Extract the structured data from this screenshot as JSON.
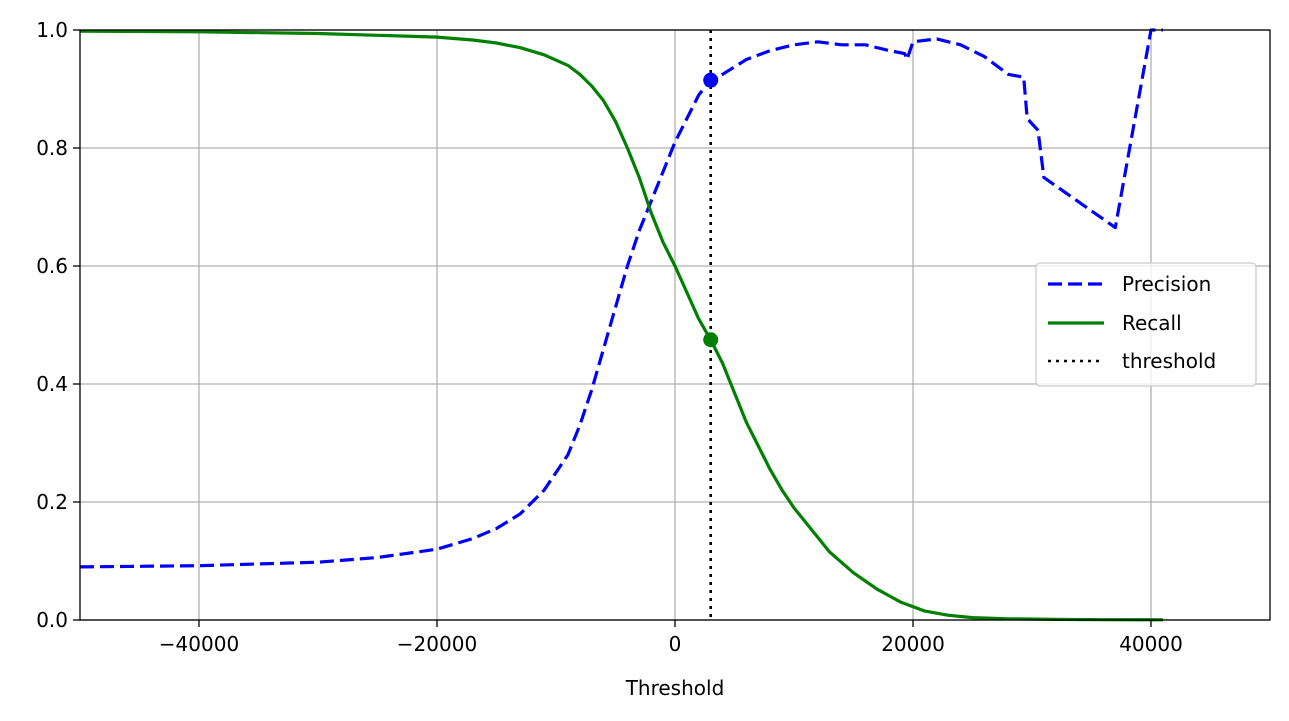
{
  "chart_data": {
    "type": "line",
    "title": "",
    "xlabel": "Threshold",
    "ylabel": "",
    "xlim": [
      -50000,
      50000
    ],
    "ylim": [
      0.0,
      1.0
    ],
    "grid": true,
    "legend_position": "center-right",
    "x_ticks": [
      -40000,
      -20000,
      0,
      20000,
      40000
    ],
    "x_tick_labels": [
      "−40000",
      "−20000",
      "0",
      "20000",
      "40000"
    ],
    "y_ticks": [
      0.0,
      0.2,
      0.4,
      0.6,
      0.8,
      1.0
    ],
    "y_tick_labels": [
      "0.0",
      "0.2",
      "0.4",
      "0.6",
      "0.8",
      "1.0"
    ],
    "series": [
      {
        "name": "Precision",
        "color": "#0000ff",
        "style": "dashed",
        "x": [
          -50000,
          -40000,
          -30000,
          -25000,
          -20000,
          -17000,
          -15000,
          -13000,
          -11000,
          -9000,
          -8000,
          -7000,
          -6000,
          -5000,
          -4000,
          -3000,
          -2000,
          -1000,
          0,
          1000,
          2000,
          3000,
          4000,
          6000,
          8000,
          10000,
          12000,
          14000,
          16000,
          18000,
          19300,
          19500,
          20000,
          22000,
          24000,
          26000,
          28000,
          29300,
          29600,
          30500,
          31000,
          37000,
          40000,
          41000
        ],
        "y": [
          0.09,
          0.092,
          0.098,
          0.106,
          0.12,
          0.138,
          0.155,
          0.18,
          0.22,
          0.28,
          0.33,
          0.39,
          0.46,
          0.53,
          0.6,
          0.66,
          0.71,
          0.76,
          0.81,
          0.85,
          0.89,
          0.915,
          0.925,
          0.95,
          0.965,
          0.975,
          0.98,
          0.975,
          0.975,
          0.965,
          0.96,
          0.95,
          0.98,
          0.985,
          0.975,
          0.955,
          0.925,
          0.92,
          0.85,
          0.83,
          0.75,
          0.665,
          1.0,
          1.0
        ]
      },
      {
        "name": "Recall",
        "color": "#008000",
        "style": "solid",
        "x": [
          -50000,
          -40000,
          -30000,
          -25000,
          -20000,
          -17000,
          -15000,
          -13000,
          -11000,
          -9000,
          -8000,
          -7000,
          -6000,
          -5000,
          -4000,
          -3000,
          -2000,
          -1000,
          0,
          1000,
          2000,
          3000,
          4000,
          5000,
          6000,
          7000,
          8000,
          9000,
          10000,
          11000,
          12000,
          13000,
          15000,
          17000,
          19000,
          21000,
          23000,
          25000,
          28000,
          32000,
          36000,
          41000
        ],
        "y": [
          0.998,
          0.997,
          0.994,
          0.991,
          0.988,
          0.983,
          0.978,
          0.97,
          0.958,
          0.94,
          0.925,
          0.905,
          0.88,
          0.845,
          0.8,
          0.75,
          0.69,
          0.64,
          0.6,
          0.555,
          0.51,
          0.475,
          0.435,
          0.385,
          0.335,
          0.295,
          0.255,
          0.22,
          0.19,
          0.165,
          0.14,
          0.115,
          0.08,
          0.052,
          0.03,
          0.015,
          0.008,
          0.004,
          0.002,
          0.001,
          0.0005,
          0.0003
        ]
      }
    ],
    "threshold": {
      "name": "threshold",
      "value": 3000,
      "color": "#000000",
      "style": "dotted"
    },
    "markers": [
      {
        "series": "Precision",
        "x": 3000,
        "y": 0.915,
        "color": "#0000ff"
      },
      {
        "series": "Recall",
        "x": 3000,
        "y": 0.475,
        "color": "#008000"
      }
    ]
  }
}
